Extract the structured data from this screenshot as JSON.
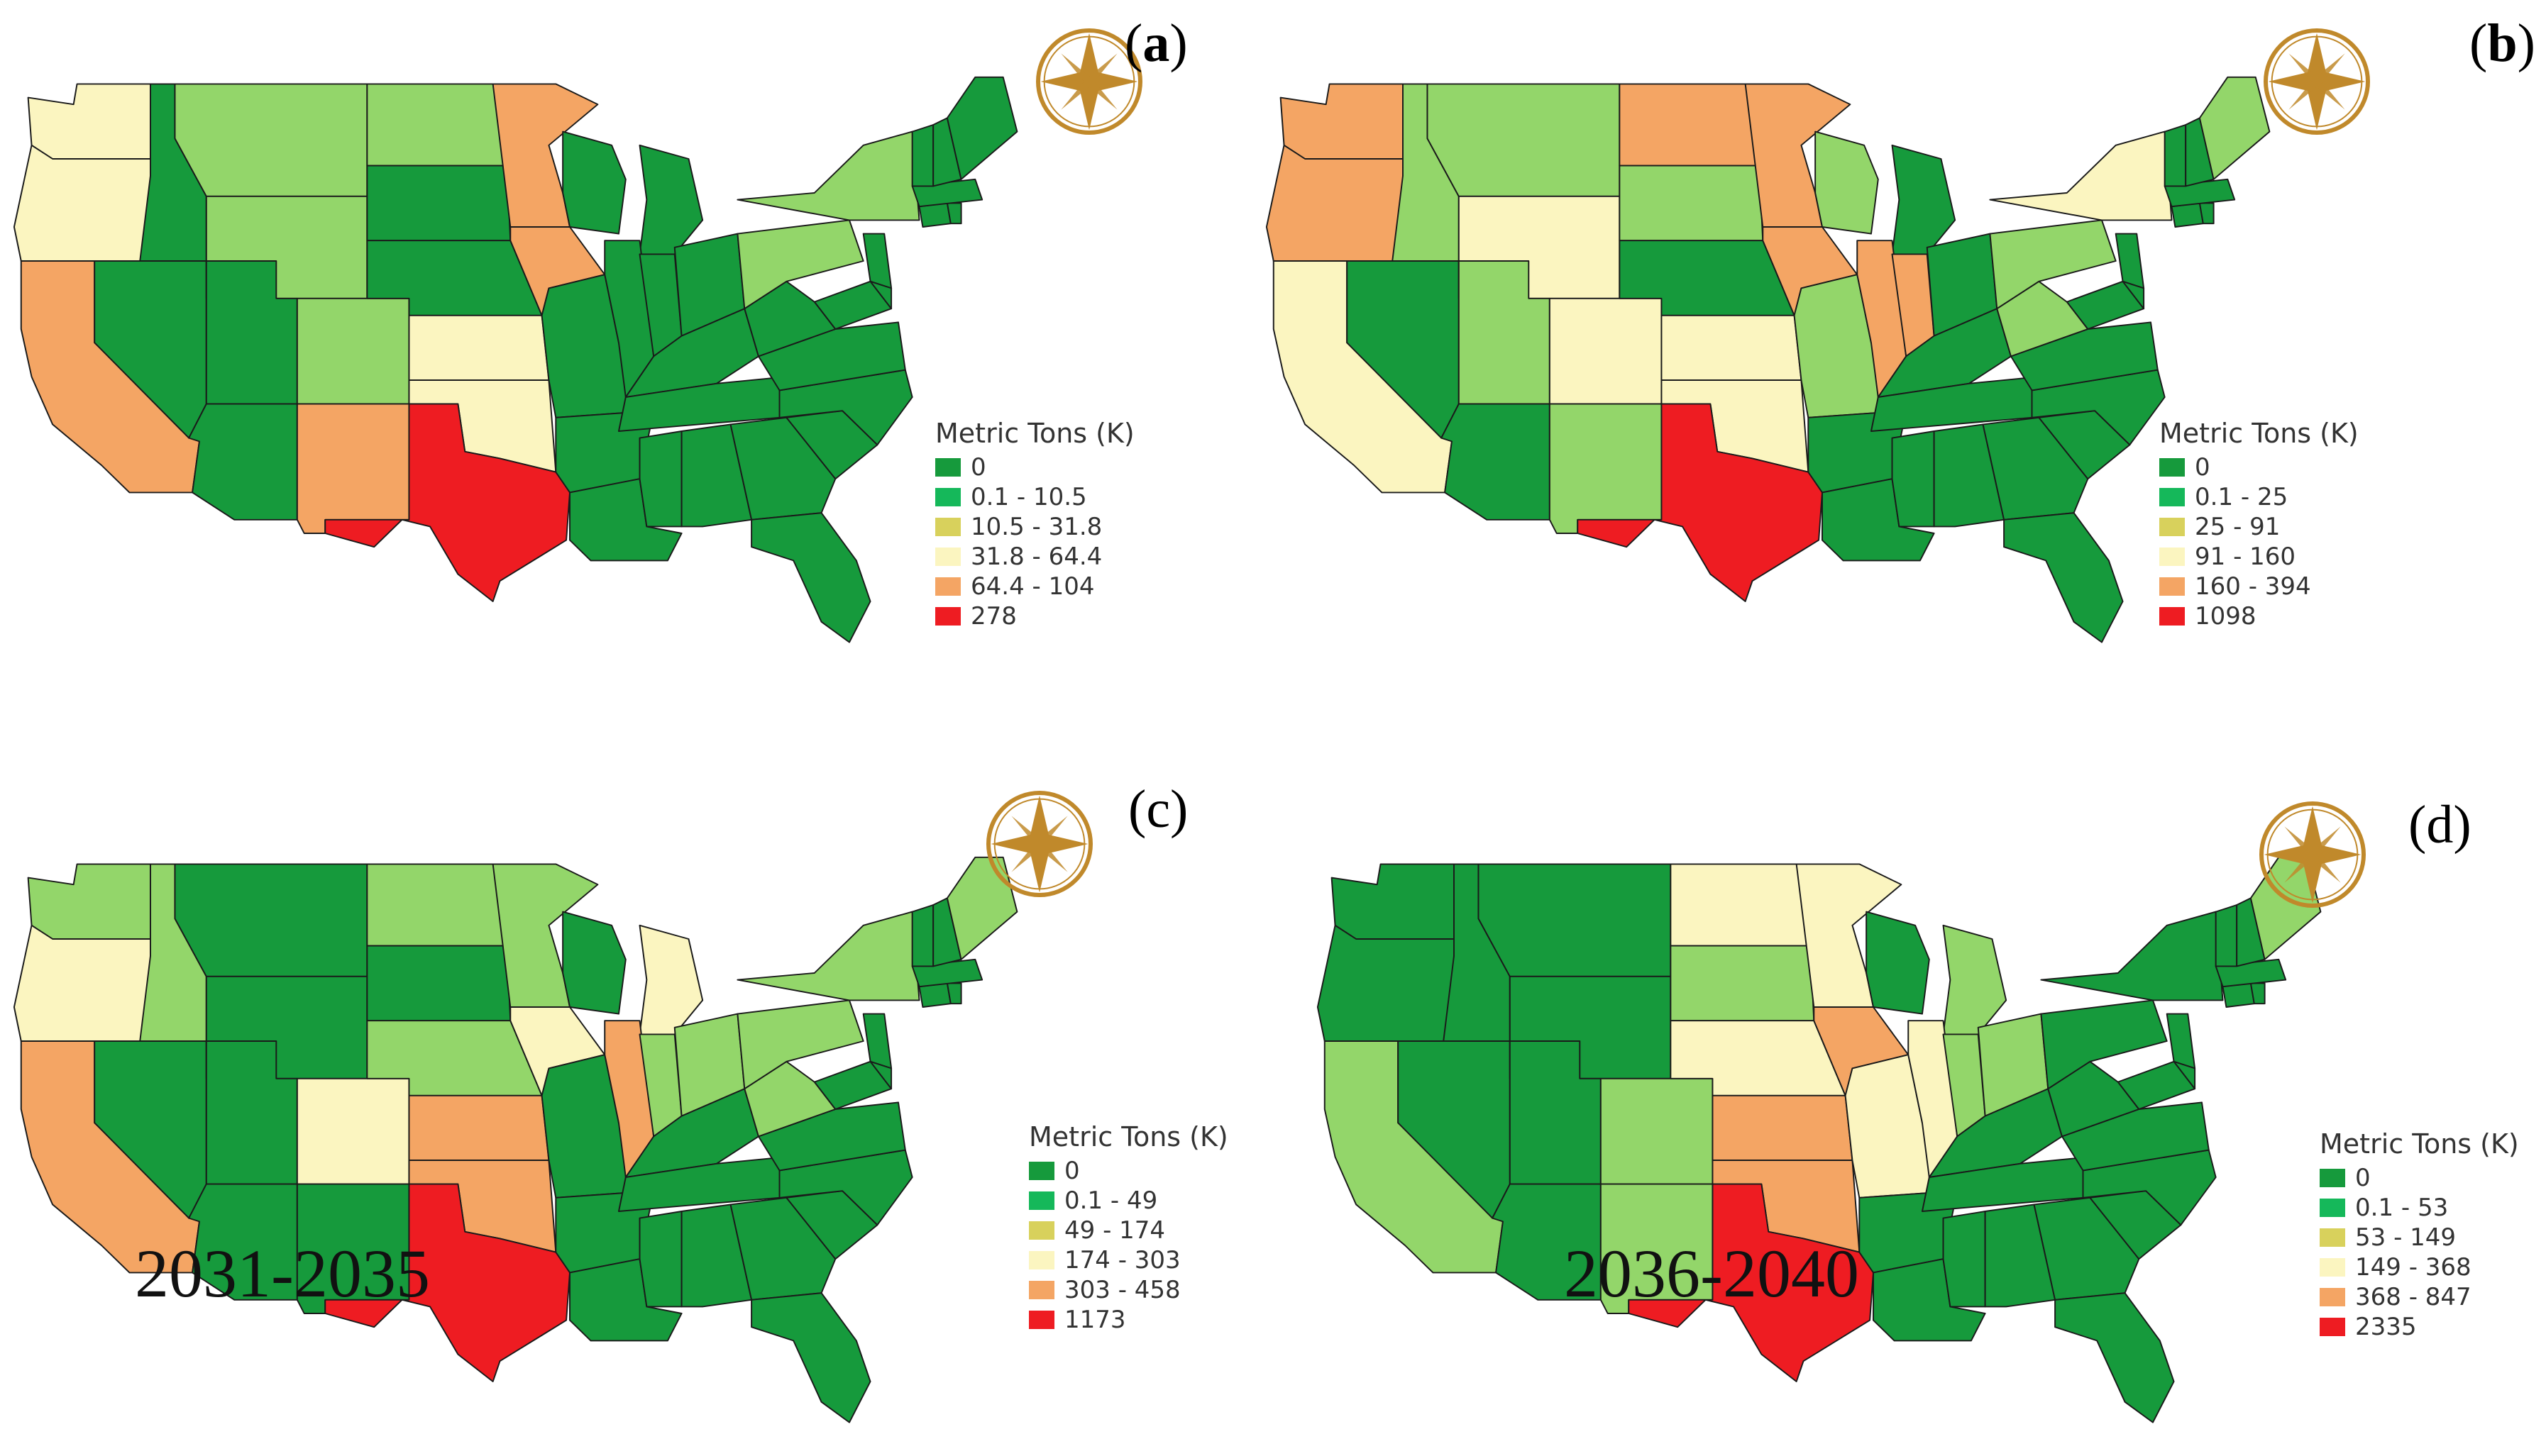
{
  "colors": {
    "dark_green": "#169a3c",
    "light_green": "#93d66a",
    "pale_yellow": "#fbf5c0",
    "orange": "#f4a564",
    "red": "#ee1c22",
    "compass": "#c0892b"
  },
  "class_colors": [
    "#169a3c",
    "#15b85a",
    "#d8d15c",
    "#fbf5c0",
    "#f4a564",
    "#ee1c22"
  ],
  "panels": [
    {
      "id": "a",
      "label_open": "(",
      "label_letter": "a",
      "label_close": ")",
      "period": "",
      "legend": {
        "title": "Metric Tons (K)",
        "items": [
          "0",
          "0.1 - 10.5",
          "10.5 - 31.8",
          "31.8 - 64.4",
          "64.4 - 104",
          "278"
        ]
      },
      "states": {
        "WA": "P",
        "OR": "P",
        "CA": "O",
        "ID": "G",
        "NV": "G",
        "MT": "L",
        "WY": "L",
        "UT": "G",
        "AZ": "G",
        "CO": "L",
        "NM": "O",
        "ND": "L",
        "SD": "G",
        "NE": "G",
        "KS": "P",
        "OK": "P",
        "TX": "R",
        "MN": "O",
        "IA": "O",
        "MO": "G",
        "AR": "G",
        "LA": "G",
        "MI": "G",
        "WI": "G",
        "IL": "G",
        "IN": "G",
        "OH": "G",
        "KY": "G",
        "TN": "G",
        "MS": "G",
        "AL": "G",
        "GA": "G",
        "FL": "G",
        "SC": "G",
        "NC": "G",
        "VA": "G",
        "WV": "G",
        "PA": "L",
        "NY": "L",
        "MD": "G",
        "NJ": "G",
        "DE": "G",
        "CT": "G",
        "RI": "G",
        "MA": "G",
        "VT": "G",
        "NH": "G",
        "ME": "G"
      }
    },
    {
      "id": "b",
      "label_open": "(",
      "label_letter": "b",
      "label_close": ")",
      "period": "",
      "legend": {
        "title": "Metric Tons (K)",
        "items": [
          "0",
          "0.1 - 25",
          "25 - 91",
          "91 - 160",
          "160 - 394",
          "1098"
        ]
      },
      "states": {
        "WA": "O",
        "OR": "O",
        "CA": "P",
        "ID": "L",
        "NV": "G",
        "MT": "L",
        "WY": "P",
        "UT": "L",
        "AZ": "G",
        "CO": "P",
        "NM": "L",
        "ND": "O",
        "SD": "L",
        "NE": "G",
        "KS": "P",
        "OK": "P",
        "TX": "R",
        "MN": "O",
        "IA": "O",
        "MO": "L",
        "AR": "G",
        "LA": "G",
        "MI": "G",
        "WI": "L",
        "IL": "O",
        "IN": "O",
        "OH": "G",
        "KY": "G",
        "TN": "G",
        "MS": "G",
        "AL": "G",
        "GA": "G",
        "FL": "G",
        "SC": "G",
        "NC": "G",
        "VA": "G",
        "WV": "L",
        "PA": "L",
        "NY": "P",
        "MD": "G",
        "NJ": "G",
        "DE": "G",
        "CT": "G",
        "RI": "G",
        "MA": "G",
        "VT": "G",
        "NH": "G",
        "ME": "L"
      }
    },
    {
      "id": "c",
      "label_open": "(",
      "label_letter": "c",
      "label_close": ")",
      "period": "2031-2035",
      "legend": {
        "title": "Metric Tons (K)",
        "items": [
          "0",
          "0.1 - 49",
          "49 - 174",
          "174 - 303",
          "303 - 458",
          "1173"
        ]
      },
      "states": {
        "WA": "L",
        "OR": "P",
        "CA": "O",
        "ID": "L",
        "NV": "G",
        "MT": "G",
        "WY": "G",
        "UT": "G",
        "AZ": "G",
        "CO": "P",
        "NM": "G",
        "ND": "L",
        "SD": "G",
        "NE": "L",
        "KS": "O",
        "OK": "O",
        "TX": "R",
        "MN": "L",
        "IA": "P",
        "MO": "G",
        "AR": "G",
        "LA": "G",
        "MI": "P",
        "WI": "G",
        "IL": "O",
        "IN": "L",
        "OH": "L",
        "KY": "G",
        "TN": "G",
        "MS": "G",
        "AL": "G",
        "GA": "G",
        "FL": "G",
        "SC": "G",
        "NC": "G",
        "VA": "G",
        "WV": "L",
        "PA": "L",
        "NY": "L",
        "MD": "G",
        "NJ": "G",
        "DE": "G",
        "CT": "G",
        "RI": "G",
        "MA": "G",
        "VT": "G",
        "NH": "G",
        "ME": "L"
      }
    },
    {
      "id": "d",
      "label_open": "(",
      "label_letter": "d",
      "label_close": ")",
      "period": "2036-2040",
      "legend": {
        "title": "Metric Tons (K)",
        "items": [
          "0",
          "0.1 - 53",
          "53 - 149",
          "149 - 368",
          "368 - 847",
          "2335"
        ]
      },
      "states": {
        "WA": "G",
        "OR": "G",
        "CA": "L",
        "ID": "G",
        "NV": "G",
        "MT": "G",
        "WY": "G",
        "UT": "G",
        "AZ": "G",
        "CO": "L",
        "NM": "L",
        "ND": "P",
        "SD": "L",
        "NE": "P",
        "KS": "O",
        "OK": "O",
        "TX": "R",
        "MN": "P",
        "IA": "O",
        "MO": "P",
        "AR": "G",
        "LA": "G",
        "MI": "L",
        "WI": "G",
        "IL": "P",
        "IN": "L",
        "OH": "L",
        "KY": "G",
        "TN": "G",
        "MS": "G",
        "AL": "G",
        "GA": "G",
        "FL": "G",
        "SC": "G",
        "NC": "G",
        "VA": "G",
        "WV": "G",
        "PA": "G",
        "NY": "G",
        "MD": "G",
        "NJ": "G",
        "DE": "G",
        "CT": "G",
        "RI": "G",
        "MA": "G",
        "VT": "G",
        "NH": "G",
        "ME": "L"
      }
    }
  ]
}
